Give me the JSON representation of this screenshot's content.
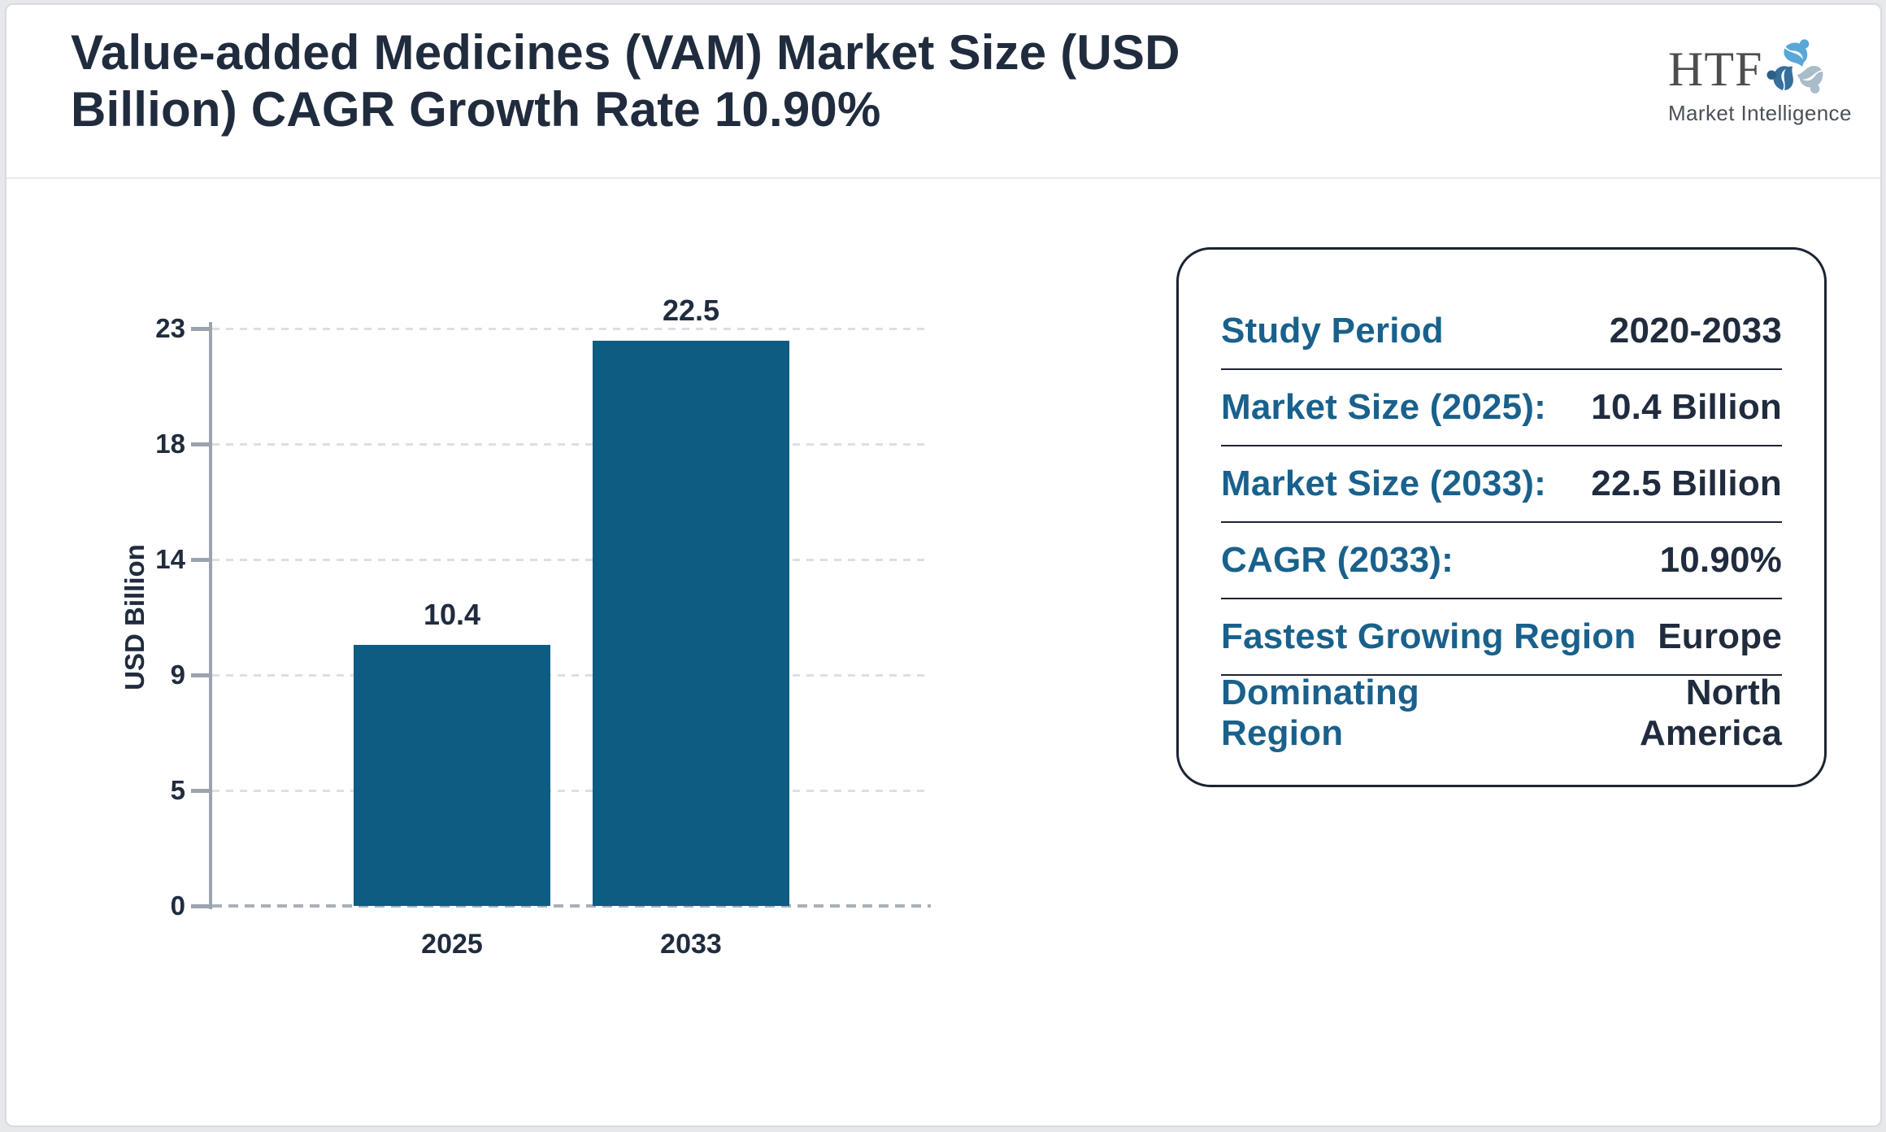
{
  "header": {
    "title": "Value-added Medicines (VAM) Market Size (USD Billion) CAGR Growth Rate 10.90%",
    "title_lines": [
      "Value-added Medicines (VAM) Market Size (USD",
      "Billion) CAGR Growth Rate 10.90%"
    ]
  },
  "logo": {
    "name": "HTF",
    "tagline": "Market Intelligence",
    "icon": "swirl-people-icon",
    "icon_colors": {
      "light_blue": "#58A7D8",
      "gray": "#A9BCC9",
      "dark_blue": "#366F9B"
    },
    "text_color": "#4D4D4D"
  },
  "chart_data": {
    "type": "bar",
    "title": "Value-added Medicines (VAM) Market Size (USD Billion) CAGR Growth Rate 10.90%",
    "categories": [
      "2025",
      "2033"
    ],
    "values": [
      10.4,
      22.5
    ],
    "data_labels": [
      "10.4",
      "22.5"
    ],
    "xlabel": "",
    "ylabel": "USD Billion",
    "ylim": [
      0,
      23
    ],
    "ytick_labels": [
      "0",
      "5",
      "9",
      "14",
      "18",
      "23"
    ],
    "grid": "horizontal-dotted",
    "legend": "none",
    "bar_color": "#0E5C81"
  },
  "info_panel": {
    "rows": [
      {
        "label": "Study Period",
        "value": "2020-2033"
      },
      {
        "label": "Market Size (2025):",
        "value": "10.4 Billion"
      },
      {
        "label": "Market Size (2033):",
        "value": "22.5 Billion"
      },
      {
        "label": "CAGR (2033):",
        "value": "10.90%"
      },
      {
        "label": "Fastest Growing Region",
        "value": "Europe"
      },
      {
        "label": "Dominating Region",
        "value": "North America"
      }
    ]
  },
  "colors": {
    "title_text": "#202C3E",
    "panel_label": "#19618C",
    "panel_value": "#202C3E",
    "bar": "#0E5C81",
    "axis": "#9BA3AE",
    "gridline": "#DCDFE3",
    "card_border": "#D8DBE0",
    "page_background": "#E6E8EB"
  }
}
